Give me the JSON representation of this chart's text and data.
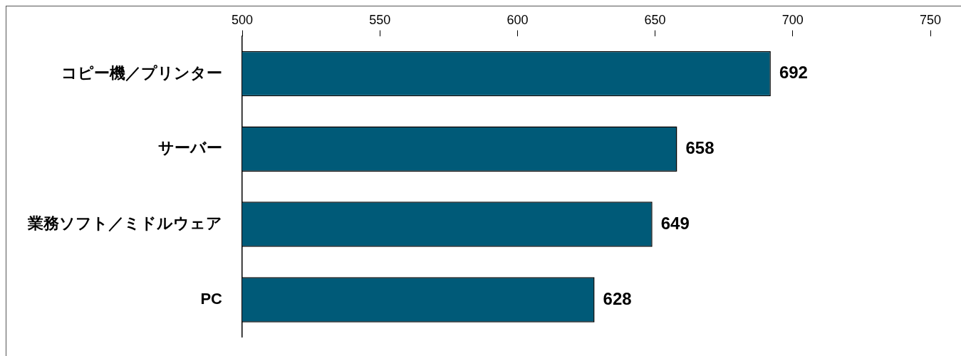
{
  "chart_data": {
    "type": "bar",
    "orientation": "horizontal",
    "categories": [
      "コピー機／プリンター",
      "サーバー",
      "業務ソフト／ミドルウェア",
      "PC"
    ],
    "values": [
      692,
      658,
      649,
      628
    ],
    "color": "#005a78",
    "xlim": [
      500,
      750
    ],
    "xticks": [
      500,
      550,
      600,
      650,
      700,
      750
    ],
    "data_labels": true,
    "grid": false,
    "legend": false
  }
}
